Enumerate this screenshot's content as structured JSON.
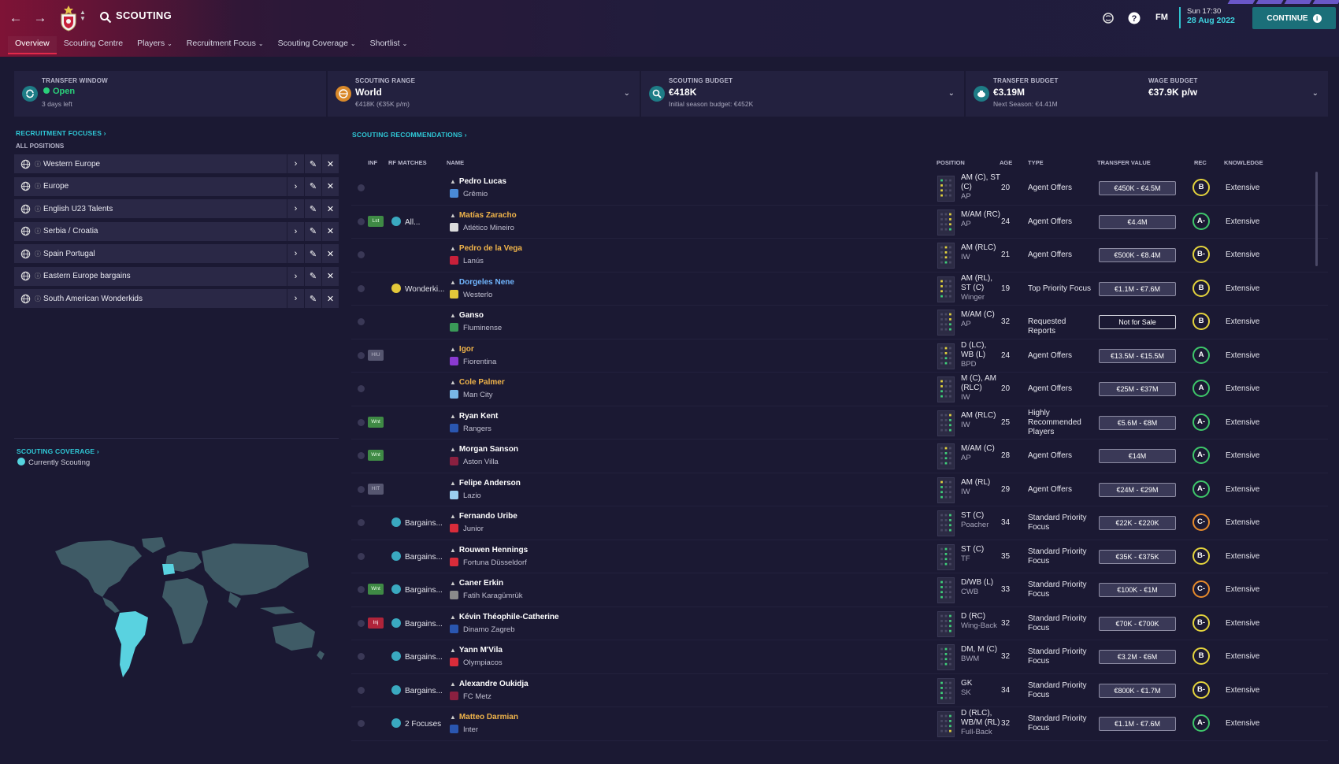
{
  "header": {
    "title": "SCOUTING",
    "tabs": [
      {
        "label": "Overview",
        "dropdown": false,
        "active": true
      },
      {
        "label": "Scouting Centre",
        "dropdown": false,
        "active": false
      },
      {
        "label": "Players",
        "dropdown": true,
        "active": false
      },
      {
        "label": "Recruitment Focus",
        "dropdown": true,
        "active": false
      },
      {
        "label": "Scouting Coverage",
        "dropdown": true,
        "active": false
      },
      {
        "label": "Shortlist",
        "dropdown": true,
        "active": false
      }
    ],
    "fm_label": "FM",
    "date_line1": "Sun 17:30",
    "date_line2": "28 Aug 2022",
    "continue_label": "CONTINUE",
    "accent": "#2fc3cf"
  },
  "summary": {
    "transfer_window": {
      "label": "TRANSFER WINDOW",
      "value": "Open",
      "sub": "3 days left"
    },
    "scouting_range": {
      "label": "SCOUTING RANGE",
      "value": "World",
      "sub": "€418K (€35K p/m)"
    },
    "scouting_budget": {
      "label": "SCOUTING BUDGET",
      "value": "€418K",
      "sub": "Initial season budget: €452K"
    },
    "transfer_budget": {
      "label": "TRANSFER BUDGET",
      "value": "€3.19M",
      "sub": "Next Season: €4.41M"
    },
    "wage_budget": {
      "label": "WAGE BUDGET",
      "value": "€37.9K p/w"
    }
  },
  "recruitment": {
    "title": "RECRUITMENT FOCUSES",
    "subtitle": "ALL POSITIONS",
    "items": [
      "Western Europe",
      "Europe",
      "English U23 Talents",
      "Serbia / Croatia",
      "Spain Portugal",
      "Eastern Europe bargains",
      "South American Wonderkids"
    ]
  },
  "coverage": {
    "title": "SCOUTING COVERAGE",
    "legend": "Currently Scouting"
  },
  "recommendations": {
    "title": "SCOUTING RECOMMENDATIONS",
    "columns": {
      "inf": "INF",
      "rf_matches": "RF MATCHES",
      "name": "NAME",
      "position": "POSITION",
      "age": "AGE",
      "type": "TYPE",
      "transfer_value": "TRANSFER VALUE",
      "rec": "REC",
      "knowledge": "KNOWLEDGE"
    },
    "rows": [
      {
        "badge": "",
        "badge_color": "",
        "rf": "",
        "name": "Pedro Lucas",
        "name_color": "white",
        "club": "Grêmio",
        "club_color": "#4a8ad6",
        "pos": "AM (C), ST (C)",
        "role": "AP",
        "age": "20",
        "type": "Agent Offers",
        "tv": "€450K - €4.5M",
        "rec": "B",
        "rec_class": "B",
        "knowledge": "Extensive"
      },
      {
        "badge": "Lst",
        "badge_color": "green",
        "rf": "All...",
        "name": "Matías Zaracho",
        "name_color": "gold",
        "club": "Atlético Mineiro",
        "club_color": "#dcdcdc",
        "pos": "M/AM (RC)",
        "role": "AP",
        "age": "24",
        "type": "Agent Offers",
        "tv": "€4.4M",
        "rec": "A-",
        "rec_class": "Am",
        "knowledge": "Extensive"
      },
      {
        "badge": "",
        "badge_color": "",
        "rf": "",
        "name": "Pedro de la Vega",
        "name_color": "gold",
        "club": "Lanús",
        "club_color": "#c8203a",
        "pos": "AM (RLC)",
        "role": "IW",
        "age": "21",
        "type": "Agent Offers",
        "tv": "€500K - €8.4M",
        "rec": "B-",
        "rec_class": "Bm",
        "knowledge": "Extensive"
      },
      {
        "badge": "",
        "badge_color": "",
        "rf": "Wonderki...",
        "name": "Dorgeles Nene",
        "name_color": "blue",
        "club": "Westerlo",
        "club_color": "#e3c83a",
        "pos": "AM (RL), ST (C)",
        "role": "Winger",
        "age": "19",
        "type": "Top Priority Focus",
        "tv": "€1.1M - €7.6M",
        "rec": "B",
        "rec_class": "B",
        "knowledge": "Extensive"
      },
      {
        "badge": "",
        "badge_color": "",
        "rf": "",
        "name": "Ganso",
        "name_color": "white",
        "club": "Fluminense",
        "club_color": "#3a9a58",
        "pos": "M/AM (C)",
        "role": "AP",
        "age": "32",
        "type": "Requested Reports",
        "tv": "Not for Sale",
        "rec": "B",
        "rec_class": "B",
        "knowledge": "Extensive"
      },
      {
        "badge": "HIU",
        "badge_color": "grey",
        "rf": "",
        "name": "Igor",
        "name_color": "gold",
        "club": "Fiorentina",
        "club_color": "#8a3ad0",
        "pos": "D (LC), WB (L)",
        "role": "BPD",
        "age": "24",
        "type": "Agent Offers",
        "tv": "€13.5M - €15.5M",
        "rec": "A",
        "rec_class": "A",
        "knowledge": "Extensive"
      },
      {
        "badge": "",
        "badge_color": "",
        "rf": "",
        "name": "Cole Palmer",
        "name_color": "gold",
        "club": "Man City",
        "club_color": "#79b7e6",
        "pos": "M (C), AM (RLC)",
        "role": "IW",
        "age": "20",
        "type": "Agent Offers",
        "tv": "€25M - €37M",
        "rec": "A",
        "rec_class": "A",
        "knowledge": "Extensive"
      },
      {
        "badge": "Wnt",
        "badge_color": "green",
        "rf": "",
        "name": "Ryan Kent",
        "name_color": "white",
        "club": "Rangers",
        "club_color": "#2a56b0",
        "pos": "AM (RLC)",
        "role": "IW",
        "age": "25",
        "type": "Highly Recommended Players",
        "tv": "€5.6M - €8M",
        "rec": "A-",
        "rec_class": "Am",
        "knowledge": "Extensive"
      },
      {
        "badge": "Wnt",
        "badge_color": "green",
        "rf": "",
        "name": "Morgan Sanson",
        "name_color": "white",
        "club": "Aston Villa",
        "club_color": "#8a2040",
        "pos": "M/AM (C)",
        "role": "AP",
        "age": "28",
        "type": "Agent Offers",
        "tv": "€14M",
        "rec": "A-",
        "rec_class": "Am",
        "knowledge": "Extensive"
      },
      {
        "badge": "HIT",
        "badge_color": "grey",
        "rf": "",
        "name": "Felipe Anderson",
        "name_color": "white",
        "club": "Lazio",
        "club_color": "#9ad0f0",
        "pos": "AM (RL)",
        "role": "IW",
        "age": "29",
        "type": "Agent Offers",
        "tv": "€24M - €29M",
        "rec": "A-",
        "rec_class": "Am",
        "knowledge": "Extensive"
      },
      {
        "badge": "",
        "badge_color": "",
        "rf": "Bargains...",
        "name": "Fernando Uribe",
        "name_color": "white",
        "club": "Junior",
        "club_color": "#d82c3a",
        "pos": "ST (C)",
        "role": "Poacher",
        "age": "34",
        "type": "Standard Priority Focus",
        "tv": "€22K - €220K",
        "rec": "C-",
        "rec_class": "Cm",
        "knowledge": "Extensive"
      },
      {
        "badge": "",
        "badge_color": "",
        "rf": "Bargains...",
        "name": "Rouwen Hennings",
        "name_color": "white",
        "club": "Fortuna Düsseldorf",
        "club_color": "#d82c3a",
        "pos": "ST (C)",
        "role": "TF",
        "age": "35",
        "type": "Standard Priority Focus",
        "tv": "€35K - €375K",
        "rec": "B-",
        "rec_class": "Bm",
        "knowledge": "Extensive"
      },
      {
        "badge": "Wnt",
        "badge_color": "green",
        "rf": "Bargains...",
        "name": "Caner Erkin",
        "name_color": "white",
        "club": "Fatih Karagümrük",
        "club_color": "#8a8a8a",
        "pos": "D/WB (L)",
        "role": "CWB",
        "age": "33",
        "type": "Standard Priority Focus",
        "tv": "€100K - €1M",
        "rec": "C-",
        "rec_class": "Cm",
        "knowledge": "Extensive"
      },
      {
        "badge": "Inj",
        "badge_color": "red",
        "rf": "Bargains...",
        "name": "Kévin Théophile-Catherine",
        "name_color": "white",
        "club": "Dinamo Zagreb",
        "club_color": "#2a56b0",
        "pos": "D (RC)",
        "role": "Wing-Back",
        "age": "32",
        "type": "Standard Priority Focus",
        "tv": "€70K - €700K",
        "rec": "B-",
        "rec_class": "Bm",
        "knowledge": "Extensive"
      },
      {
        "badge": "",
        "badge_color": "",
        "rf": "Bargains...",
        "name": "Yann M'Vila",
        "name_color": "white",
        "club": "Olympiacos",
        "club_color": "#d82c3a",
        "pos": "DM, M (C)",
        "role": "BWM",
        "age": "32",
        "type": "Standard Priority Focus",
        "tv": "€3.2M - €6M",
        "rec": "B",
        "rec_class": "B",
        "knowledge": "Extensive"
      },
      {
        "badge": "",
        "badge_color": "",
        "rf": "Bargains...",
        "name": "Alexandre Oukidja",
        "name_color": "white",
        "club": "FC Metz",
        "club_color": "#8a2040",
        "pos": "GK",
        "role": "SK",
        "age": "34",
        "type": "Standard Priority Focus",
        "tv": "€800K - €1.7M",
        "rec": "B-",
        "rec_class": "Bm",
        "knowledge": "Extensive"
      },
      {
        "badge": "",
        "badge_color": "",
        "rf": "2 Focuses",
        "name": "Matteo Darmian",
        "name_color": "gold",
        "club": "Inter",
        "club_color": "#2a56b0",
        "pos": "D (RLC), WB/M (RL)",
        "role": "Full-Back",
        "age": "32",
        "type": "Standard Priority Focus",
        "tv": "€1.1M - €7.6M",
        "rec": "A-",
        "rec_class": "Am",
        "knowledge": "Extensive"
      }
    ]
  }
}
